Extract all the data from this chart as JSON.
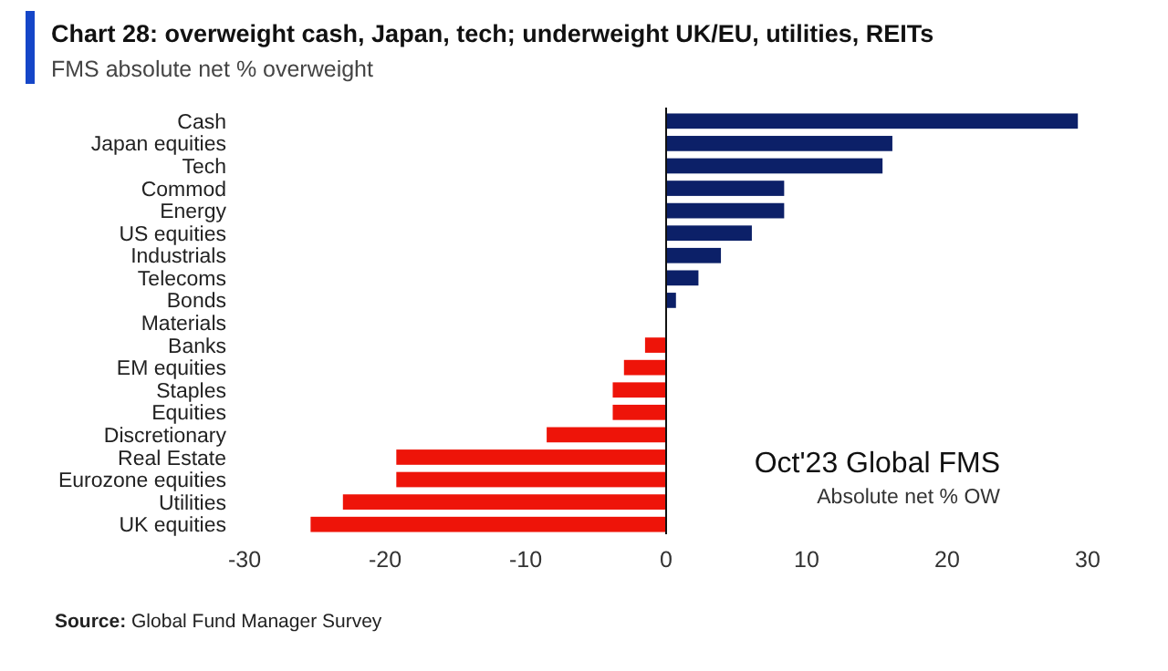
{
  "chart_data": {
    "type": "bar",
    "orientation": "horizontal",
    "title": "Chart 28: overweight cash, Japan, tech; underweight UK/EU, utilities, REITs",
    "subtitle": "FMS absolute net % overweight",
    "categories": [
      "Cash",
      "Japan equities",
      "Tech",
      "Commod",
      "Energy",
      "US equities",
      "Industrials",
      "Telecoms",
      "Bonds",
      "Materials",
      "Banks",
      "EM equities",
      "Staples",
      "Equities",
      "Discretionary",
      "Real Estate",
      "Eurozone equities",
      "Utilities",
      "UK equities"
    ],
    "values": [
      29.3,
      16.1,
      15.4,
      8.4,
      8.4,
      6.1,
      3.9,
      2.3,
      0.7,
      0,
      -1.5,
      -3.0,
      -3.8,
      -3.8,
      -8.5,
      -19.2,
      -19.2,
      -23.0,
      -25.3
    ],
    "colors": [
      "#0c2068",
      "#0c2068",
      "#0c2068",
      "#0c2068",
      "#0c2068",
      "#0c2068",
      "#0c2068",
      "#0c2068",
      "#0c2068",
      "#0c2068",
      "#ee1409",
      "#ee1409",
      "#ee1409",
      "#ee1409",
      "#ee1409",
      "#ee1409",
      "#ee1409",
      "#ee1409",
      "#ee1409"
    ],
    "xlim": [
      -30,
      30
    ],
    "xticks": [
      -30,
      -20,
      -10,
      0,
      10,
      20,
      30
    ],
    "annotations": [
      "Oct'23 Global FMS",
      "Absolute net % OW",
      "Source: Global Fund Manager Survey"
    ]
  }
}
